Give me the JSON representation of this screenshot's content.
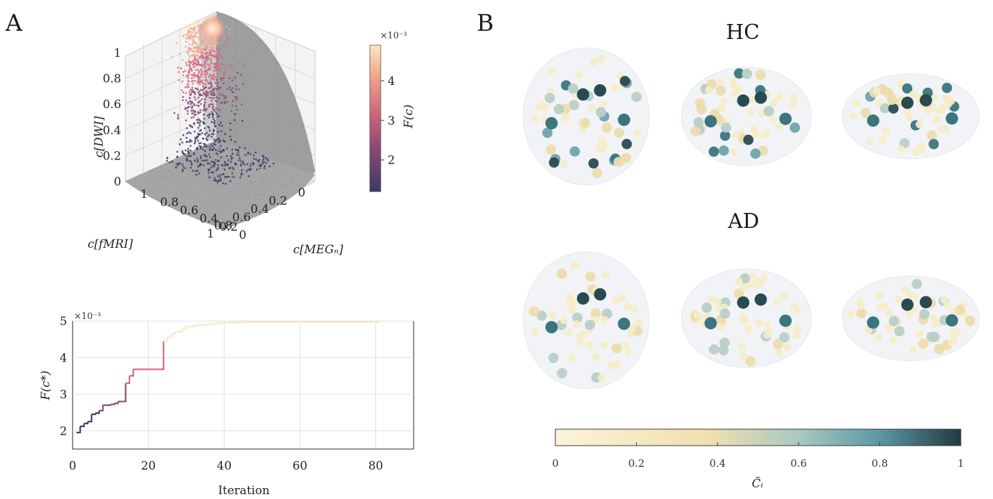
{
  "panel_a": {
    "letter": "A",
    "scatter3d": {
      "axis_dwi": {
        "label": "c[DWI]",
        "ticks": [
          "0",
          "0.2",
          "0.4",
          "0.6",
          "0.8",
          "1"
        ]
      },
      "axis_fmri": {
        "label": "c[fMRI]",
        "ticks": [
          "0",
          "0.2",
          "0.4",
          "0.6",
          "0.8",
          "1"
        ]
      },
      "axis_meg": {
        "label": "c[MEGₙ]",
        "ticks": [
          "0",
          "0.2",
          "0.4",
          "0.6",
          "0.8",
          "1"
        ]
      },
      "colorbar": {
        "label": "F(c)",
        "exponent": "×10⁻³",
        "ticks": [
          "2",
          "3",
          "4"
        ]
      }
    },
    "convergence": {
      "exponent": "×10⁻³",
      "ylabel": "F(c*)",
      "xlabel": "Iteration",
      "xticks": [
        "0",
        "20",
        "40",
        "60",
        "80"
      ],
      "yticks": [
        "2",
        "3",
        "4",
        "5"
      ]
    }
  },
  "panel_b": {
    "letter": "B",
    "group_hc": "HC",
    "group_ad": "AD",
    "colorbar": {
      "label": "C̃ᵢ",
      "ticks": [
        "0",
        "0.2",
        "0.4",
        "0.6",
        "0.8",
        "1"
      ]
    }
  },
  "chart_data": [
    {
      "type": "scatter",
      "dimensions": 3,
      "axes": [
        "c[fMRI]",
        "c[MEG]",
        "c[DWI]"
      ],
      "xlim": [
        0,
        1
      ],
      "ylim": [
        0,
        1
      ],
      "zlim": [
        0,
        1
      ],
      "colorbar_label": "F(c)",
      "colorbar_range": [
        0.0012,
        0.0049
      ],
      "note_max_region": [
        0.05,
        0.05,
        0.98
      ]
    },
    {
      "type": "line",
      "xlabel": "Iteration",
      "ylabel": "F(c*)",
      "xlim": [
        0,
        90
      ],
      "ylim": [
        1.5,
        5
      ],
      "y_scale_exponent": -3,
      "x": [
        1,
        2,
        3,
        4,
        5,
        6,
        7,
        8,
        9,
        10,
        11,
        12,
        13,
        14,
        15,
        16,
        17,
        18,
        19,
        20,
        21,
        22,
        23,
        24,
        25,
        26,
        27,
        28,
        29,
        30,
        32,
        34,
        36,
        38,
        40,
        45,
        50,
        60,
        70,
        81
      ],
      "y": [
        1.95,
        2.12,
        2.2,
        2.25,
        2.45,
        2.48,
        2.55,
        2.7,
        2.7,
        2.72,
        2.75,
        2.8,
        2.8,
        3.3,
        3.5,
        3.68,
        3.68,
        3.68,
        3.68,
        3.68,
        3.68,
        3.68,
        3.68,
        4.45,
        4.55,
        4.65,
        4.7,
        4.72,
        4.8,
        4.85,
        4.88,
        4.9,
        4.92,
        4.95,
        4.96,
        4.97,
        4.97,
        4.97,
        4.97,
        4.97
      ]
    }
  ],
  "colors": {
    "node_scale": [
      "#f6ecc8",
      "#ecdcae",
      "#b8cfc6",
      "#6ea3ad",
      "#3a7580",
      "#2a4a52"
    ],
    "f_scale": [
      "#3b3a66",
      "#8a4a74",
      "#d2687a",
      "#f0a88c",
      "#fbe7c6"
    ]
  }
}
